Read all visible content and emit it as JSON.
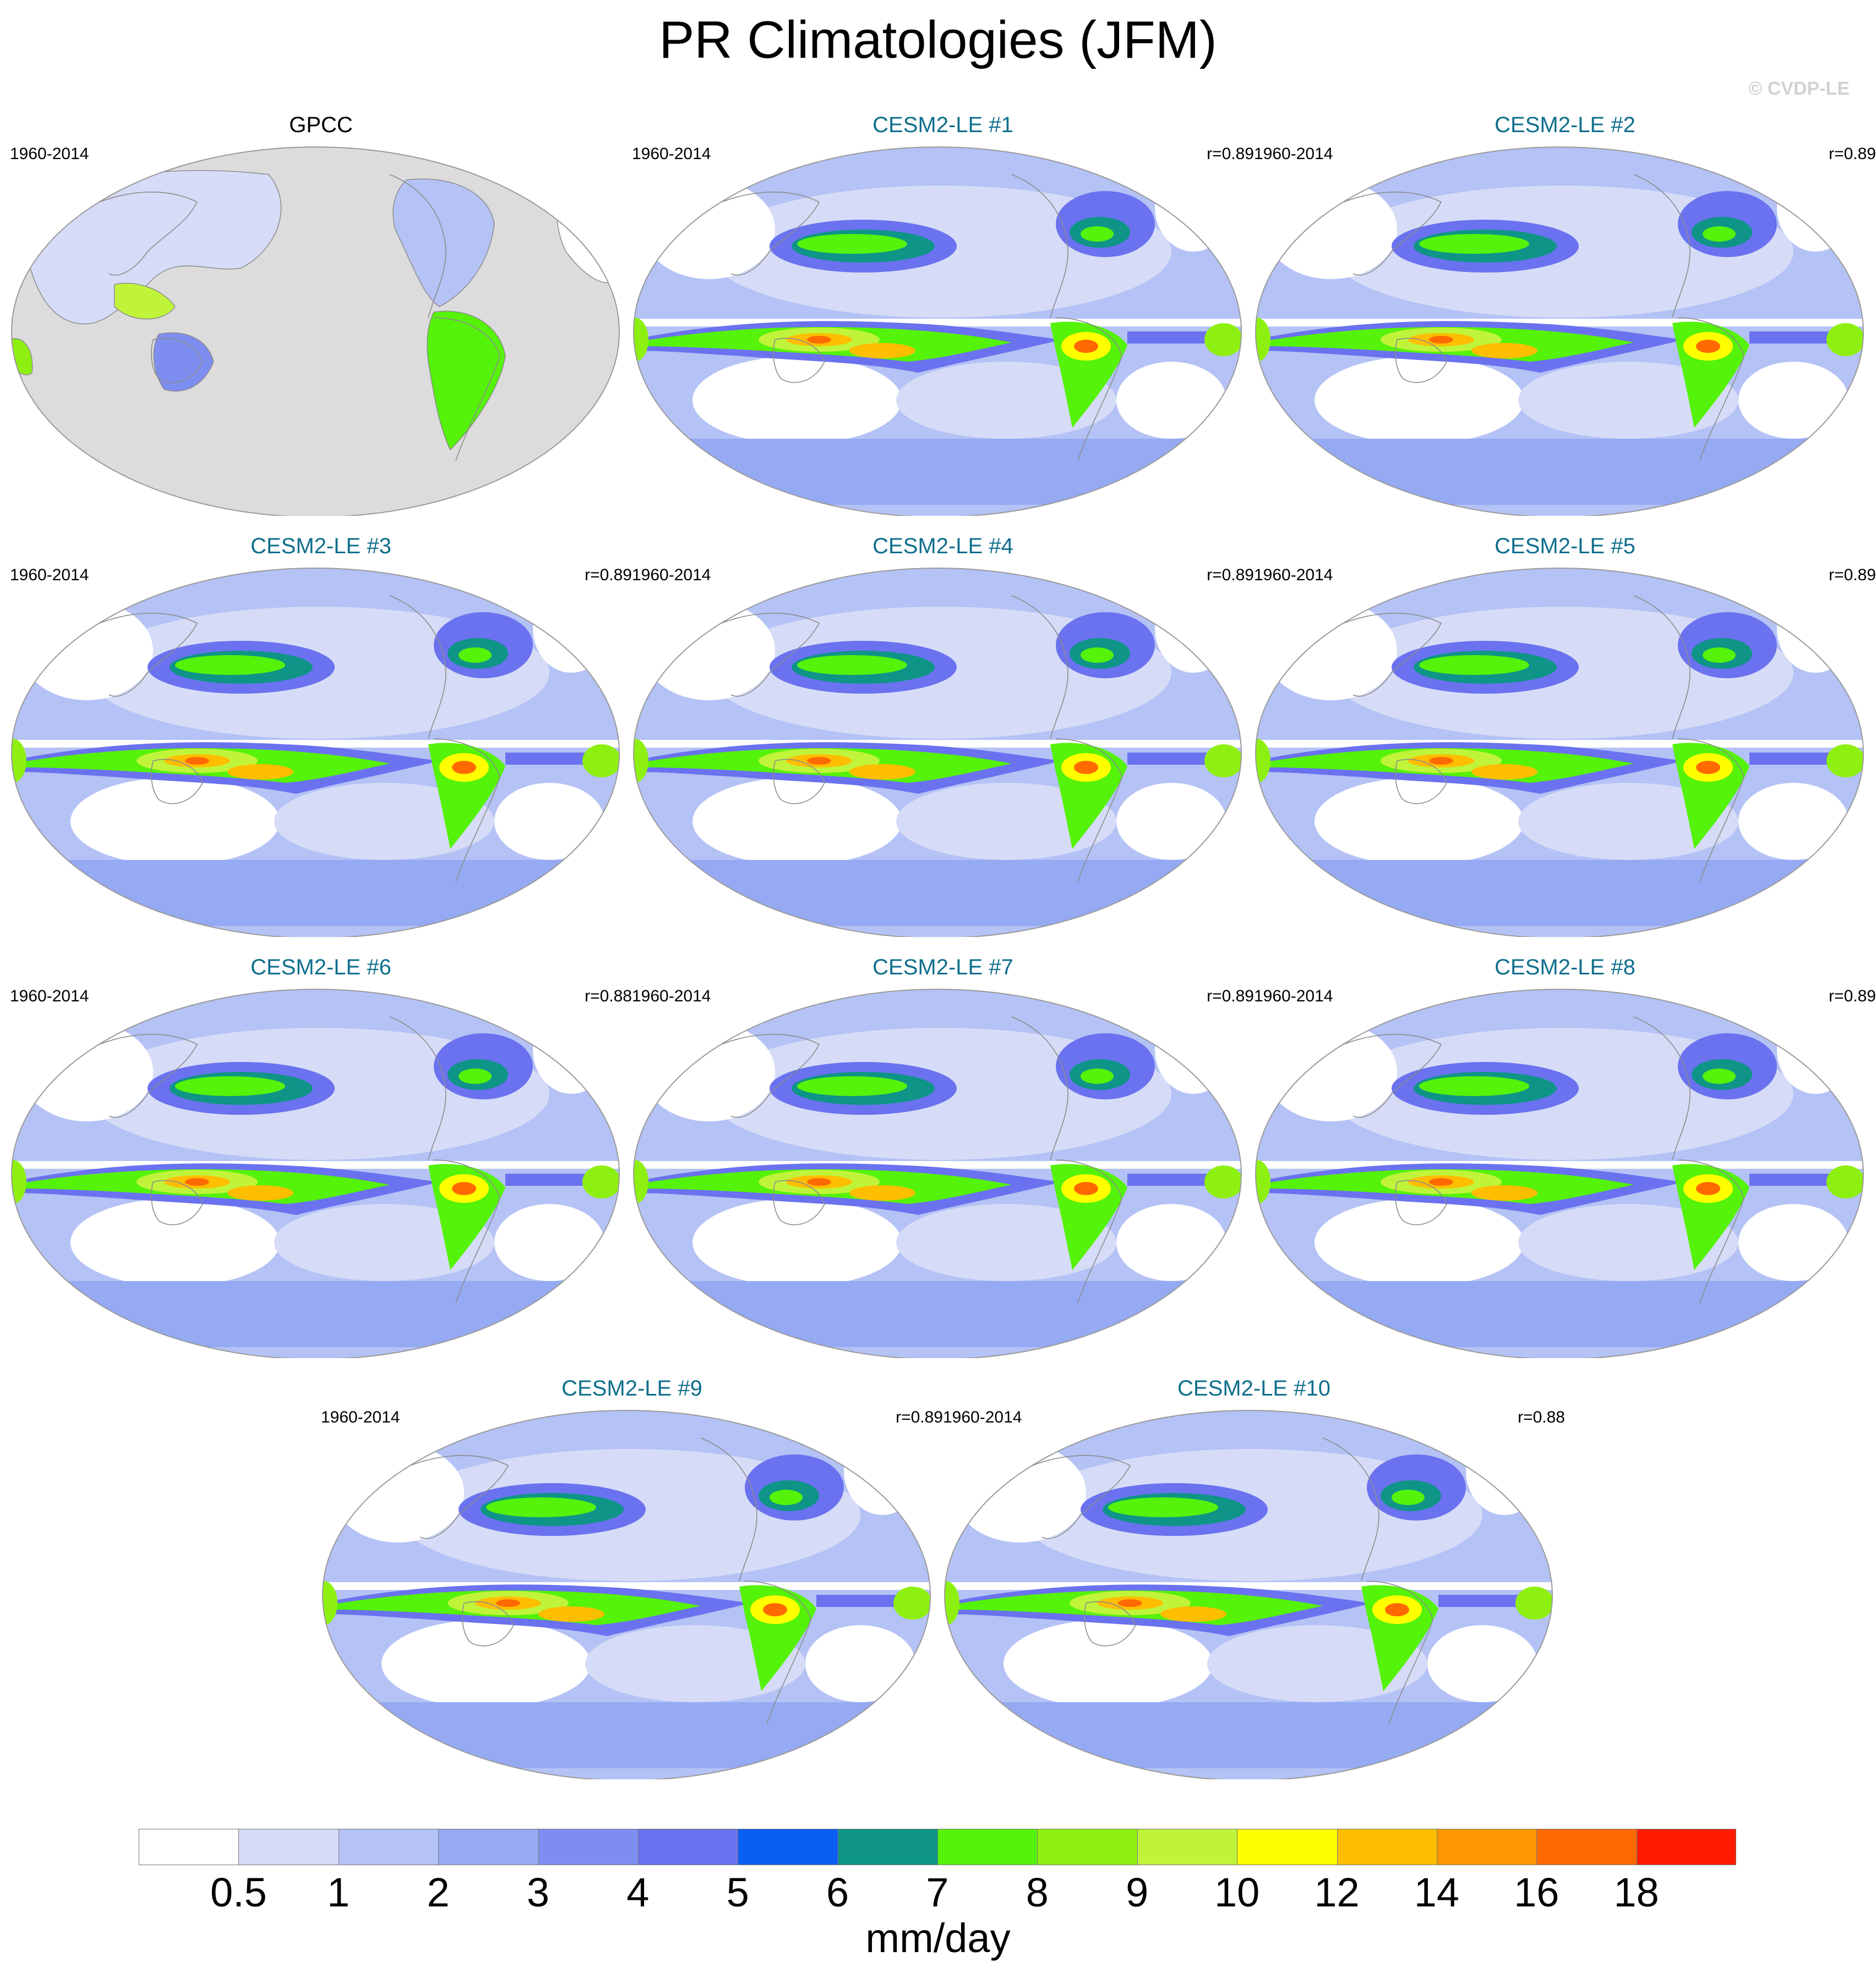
{
  "title": "PR Climatologies (JFM)",
  "watermark": "© CVDP-LE",
  "panels": [
    {
      "title": "GPCC",
      "period": "1960-2014",
      "correlation": "",
      "kind": "obs"
    },
    {
      "title": "CESM2-LE #1",
      "period": "1960-2014",
      "correlation": "r=0.89",
      "kind": "model"
    },
    {
      "title": "CESM2-LE #2",
      "period": "1960-2014",
      "correlation": "r=0.89",
      "kind": "model"
    },
    {
      "title": "CESM2-LE #3",
      "period": "1960-2014",
      "correlation": "r=0.89",
      "kind": "model"
    },
    {
      "title": "CESM2-LE #4",
      "period": "1960-2014",
      "correlation": "r=0.89",
      "kind": "model"
    },
    {
      "title": "CESM2-LE #5",
      "period": "1960-2014",
      "correlation": "r=0.89",
      "kind": "model"
    },
    {
      "title": "CESM2-LE #6",
      "period": "1960-2014",
      "correlation": "r=0.88",
      "kind": "model"
    },
    {
      "title": "CESM2-LE #7",
      "period": "1960-2014",
      "correlation": "r=0.89",
      "kind": "model"
    },
    {
      "title": "CESM2-LE #8",
      "period": "1960-2014",
      "correlation": "r=0.89",
      "kind": "model"
    },
    {
      "title": "CESM2-LE #9",
      "period": "1960-2014",
      "correlation": "r=0.89",
      "kind": "model"
    },
    {
      "title": "CESM2-LE #10",
      "period": "1960-2014",
      "correlation": "r=0.88",
      "kind": "model"
    }
  ],
  "colorbar": {
    "units": "mm/day",
    "levels": [
      "0.5",
      "1",
      "2",
      "3",
      "4",
      "5",
      "6",
      "7",
      "8",
      "9",
      "10",
      "12",
      "14",
      "16",
      "18"
    ],
    "colors": [
      "#ffffff",
      "#d6dcf7",
      "#b4c2f5",
      "#95aaf3",
      "#7e8ef0",
      "#6a72ef",
      "#0a5ef0",
      "#0f9488",
      "#55f20a",
      "#8ef010",
      "#c0f43a",
      "#ffff00",
      "#ffbe00",
      "#ff9800",
      "#ff6a00",
      "#ff1a00"
    ]
  },
  "map_colors": {
    "land_mask": "#dcdcdc",
    "outline": "#9a9a9a",
    "coast": "#8c8c8c"
  }
}
